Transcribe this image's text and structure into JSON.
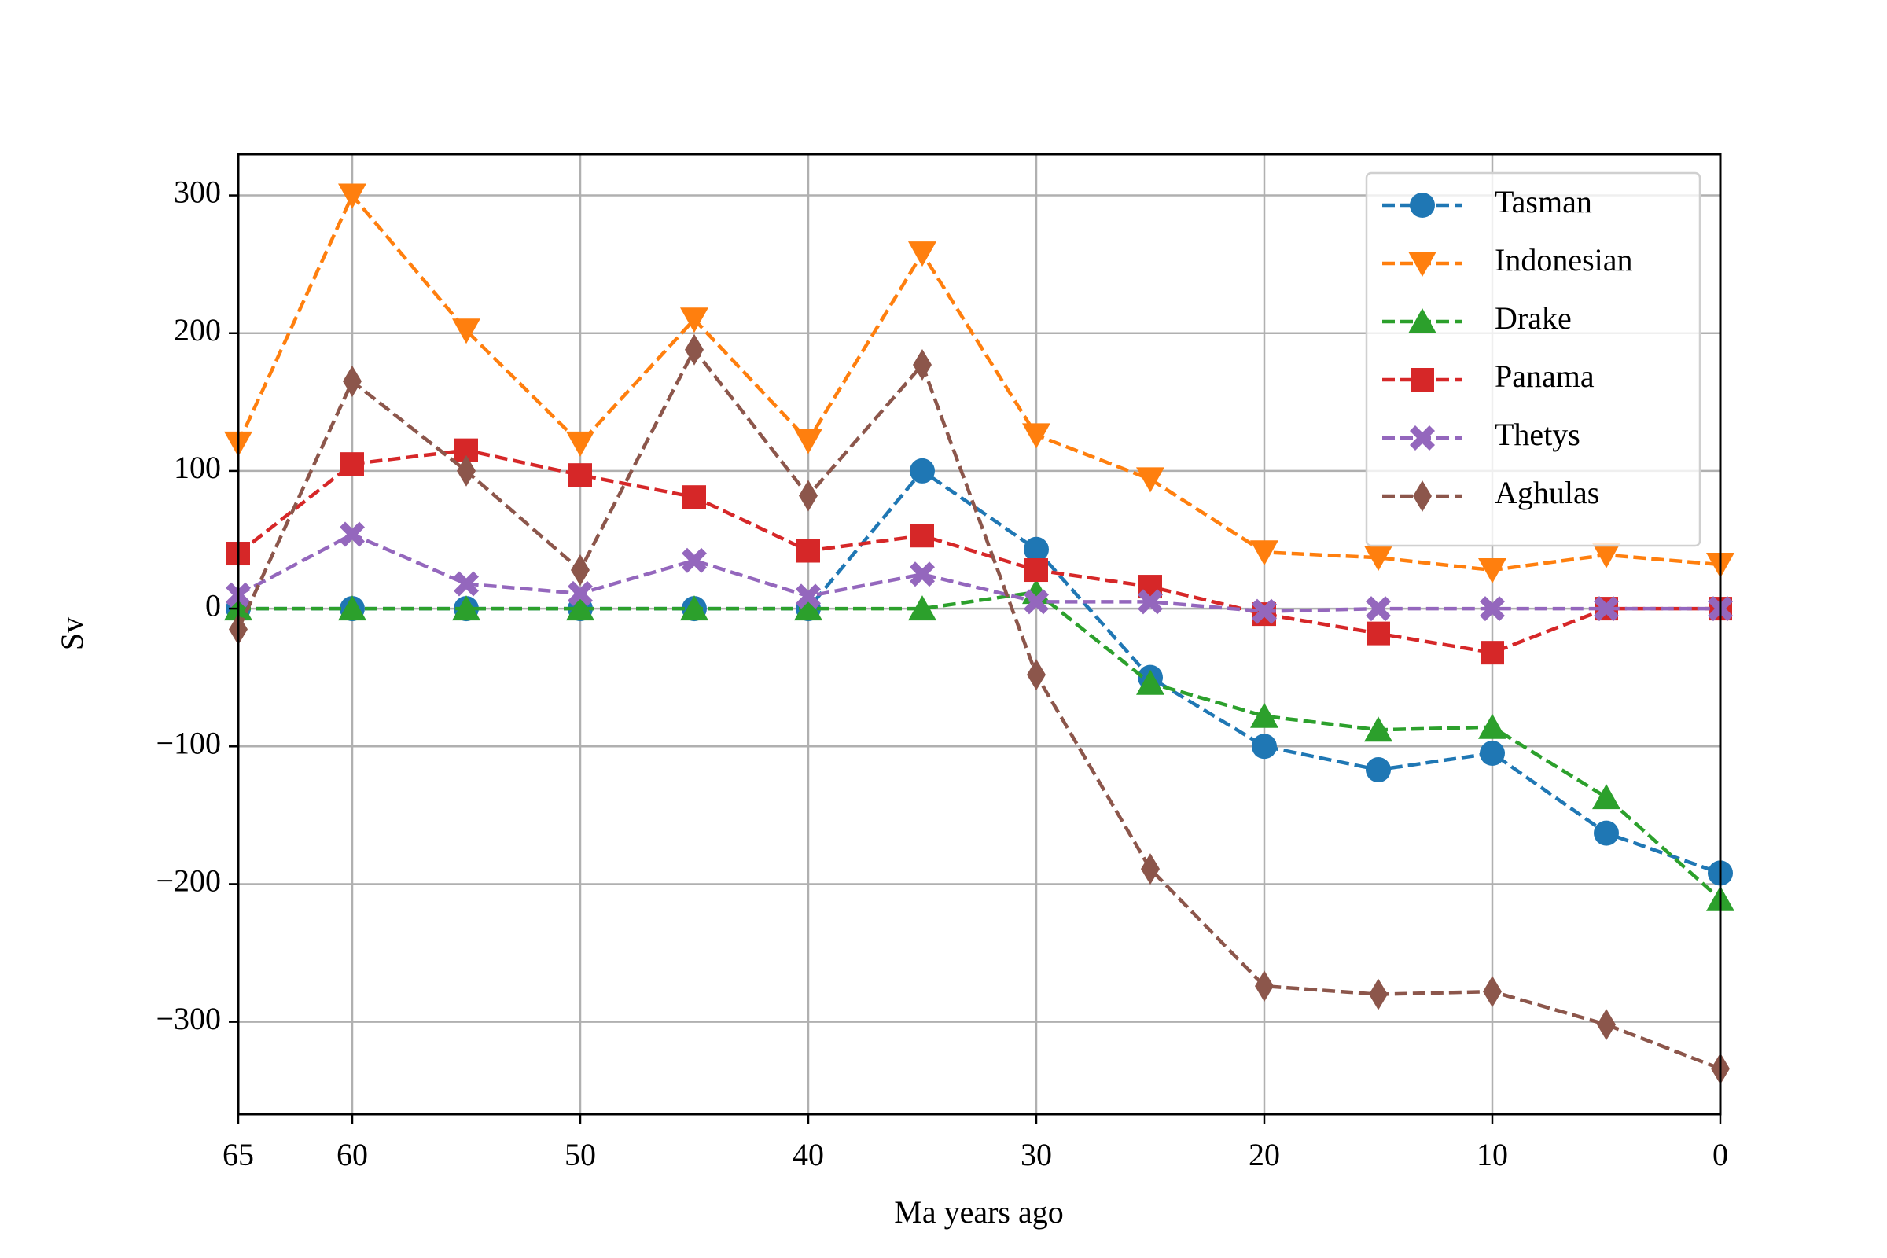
{
  "chart_data": {
    "type": "line",
    "x_label": "Ma years ago",
    "y_label": "Sv",
    "x": [
      65,
      60,
      55,
      50,
      45,
      40,
      35,
      30,
      25,
      20,
      15,
      10,
      5,
      0
    ],
    "xlim": [
      65,
      0
    ],
    "xticks": [
      65,
      60,
      50,
      40,
      30,
      20,
      10,
      0
    ],
    "ylim": [
      -367,
      330
    ],
    "yticks": [
      {
        "value": -300,
        "label": "−300"
      },
      {
        "value": -200,
        "label": "−200"
      },
      {
        "value": -100,
        "label": "−100"
      },
      0,
      100,
      200,
      300
    ],
    "grid": true,
    "legend": "upper right",
    "line_style": "dashed",
    "series": [
      {
        "name": "Tasman",
        "color": "#1f77b4",
        "marker": "circle",
        "values": [
          0,
          0,
          0,
          0,
          0,
          0,
          100,
          43,
          -50,
          -100,
          -117,
          -105,
          -163,
          -192
        ]
      },
      {
        "name": "Indonesian",
        "color": "#ff7f0e",
        "marker": "triangle-down",
        "values": [
          120,
          300,
          202,
          120,
          210,
          122,
          258,
          126,
          94,
          41,
          37,
          28,
          39,
          32
        ]
      },
      {
        "name": "Drake",
        "color": "#2ca02c",
        "marker": "triangle-up",
        "values": [
          0,
          0,
          0,
          0,
          0,
          0,
          0,
          12,
          -54,
          -78,
          -88,
          -86,
          -137,
          -211
        ]
      },
      {
        "name": "Panama",
        "color": "#d62728",
        "marker": "square",
        "values": [
          40,
          105,
          115,
          97,
          81,
          42,
          53,
          28,
          16,
          -4,
          -18,
          -32,
          0,
          0
        ]
      },
      {
        "name": "Thetys",
        "color": "#9467bd",
        "marker": "x",
        "values": [
          10,
          54,
          18,
          11,
          35,
          9,
          25,
          5,
          5,
          -2,
          0,
          0,
          0,
          0
        ]
      },
      {
        "name": "Aghulas",
        "color": "#8c564b",
        "marker": "diamond",
        "values": [
          -15,
          165,
          100,
          28,
          188,
          82,
          177,
          -48,
          -189,
          -274,
          -280,
          -278,
          -302,
          -334
        ]
      }
    ]
  }
}
